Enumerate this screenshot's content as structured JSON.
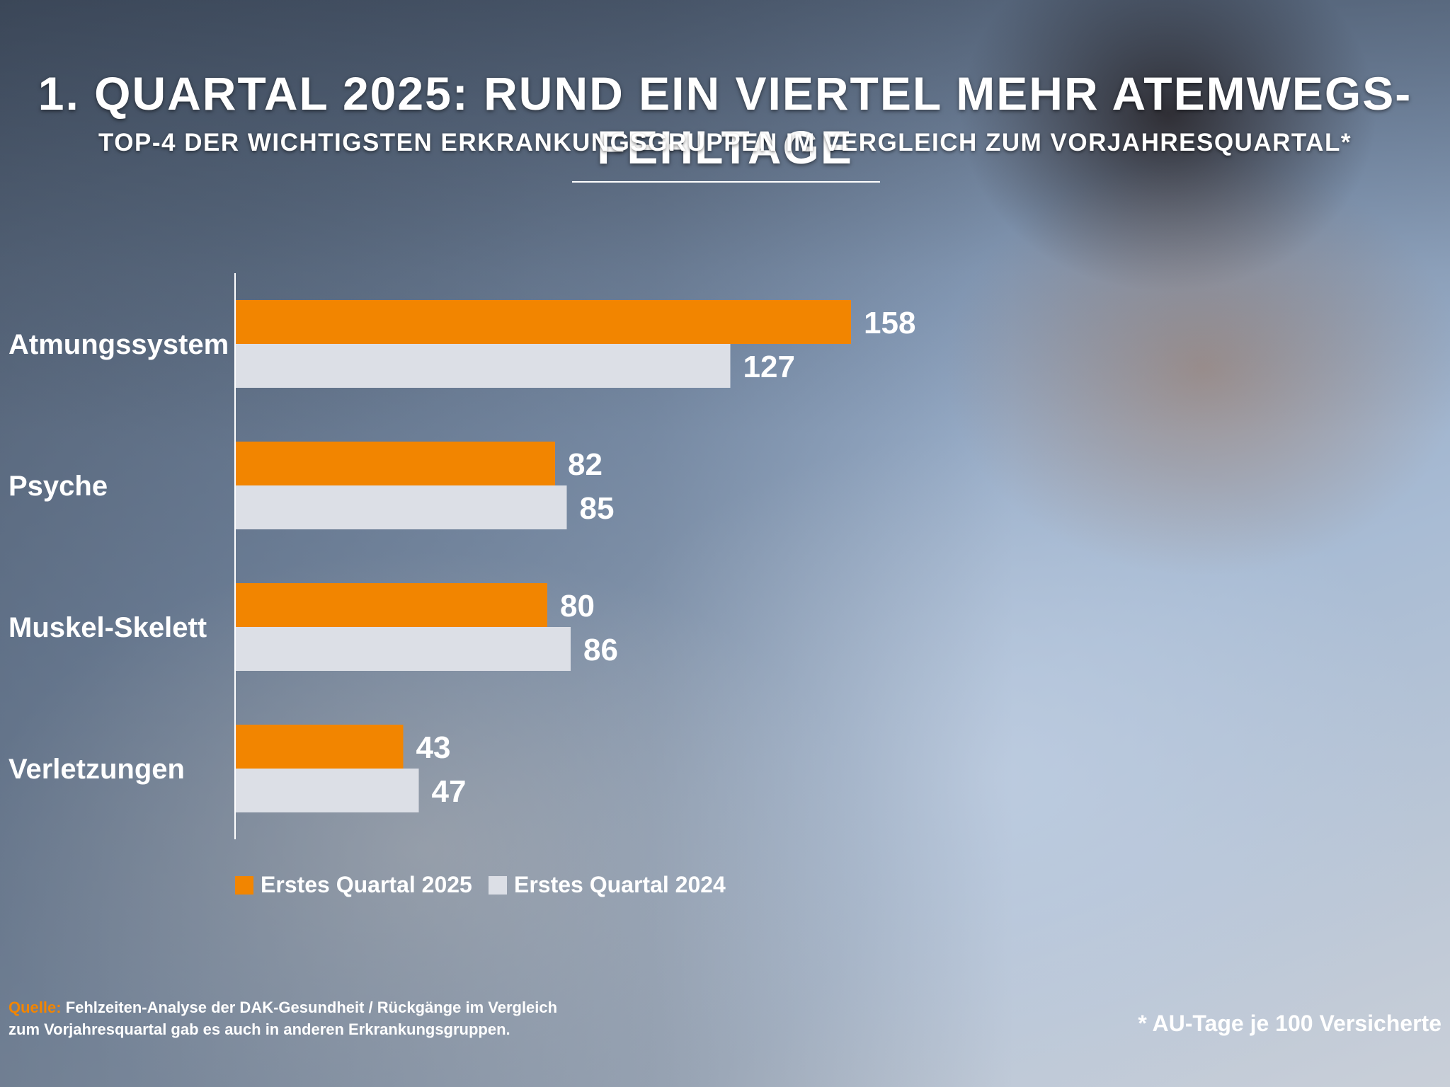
{
  "title": "1. QUARTAL 2025: RUND EIN VIERTEL MEHR ATEMWEGS-FEHLTAGE",
  "subtitle": "TOP-4 DER WICHTIGSTEN ERKRANKUNGSGRUPPEN IM VERGLEICH ZUM VORJAHRESQUARTAL*",
  "colors": {
    "q2025": "#f28500",
    "q2024": "#dcdfe6",
    "source_label": "#f28500"
  },
  "chart_data": {
    "type": "bar",
    "orientation": "horizontal",
    "categories": [
      "Atmungssystem",
      "Psyche",
      "Muskel-Skelett",
      "Verletzungen"
    ],
    "series": [
      {
        "name": "Erstes Quartal 2025",
        "values": [
          158,
          82,
          80,
          43
        ]
      },
      {
        "name": "Erstes Quartal 2024",
        "values": [
          127,
          85,
          86,
          47
        ]
      }
    ],
    "xlim": [
      0,
      160
    ],
    "grid": false,
    "legend_position": "bottom-left"
  },
  "legend": {
    "q2025": "Erstes Quartal 2025",
    "q2024": "Erstes Quartal 2024"
  },
  "source": {
    "label": "Quelle:",
    "line1": " Fehlzeiten-Analyse der DAK-Gesundheit / Rückgänge im Vergleich",
    "line2": "zum Vorjahresquartal gab es auch in anderen Erkrankungsgruppen."
  },
  "footnote": "* AU-Tage je 100 Versicherte"
}
